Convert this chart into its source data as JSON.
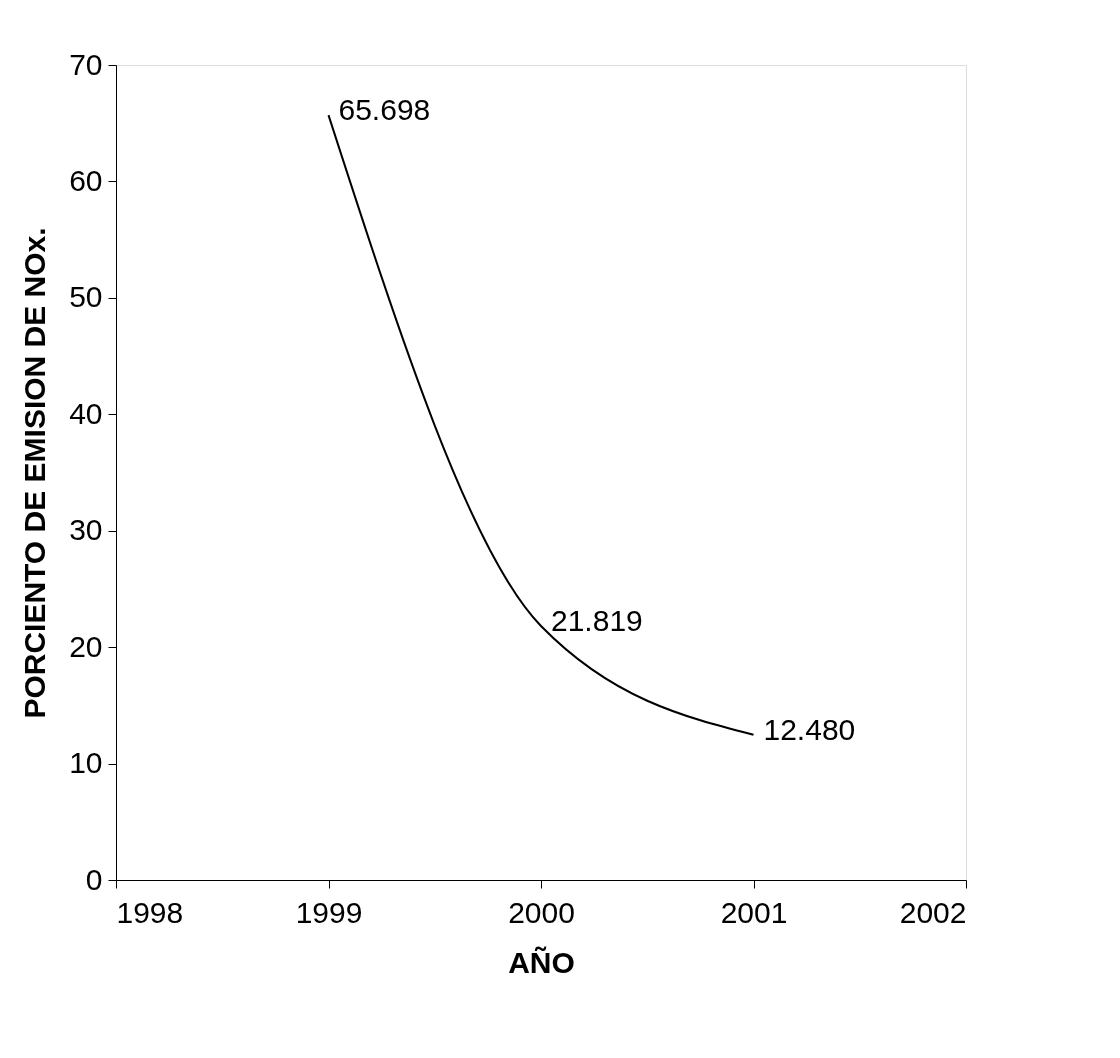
{
  "chart_data": {
    "type": "line",
    "xlabel": "AÑO",
    "ylabel": "PORCIENTO DE EMISION DE NOx.",
    "x": [
      1999,
      2000,
      2001
    ],
    "series": [
      {
        "color": "#000000",
        "values": [
          65.698,
          21.819,
          12.48
        ],
        "value_labels": [
          "65.698",
          "21.819",
          "12.480"
        ]
      }
    ],
    "xlim": [
      1998,
      2002
    ],
    "xticks": [
      1998,
      1999,
      2000,
      2001,
      2002
    ],
    "ylim": [
      0,
      70
    ],
    "yticks": [
      0,
      10,
      20,
      30,
      40,
      50,
      60,
      70
    ]
  }
}
